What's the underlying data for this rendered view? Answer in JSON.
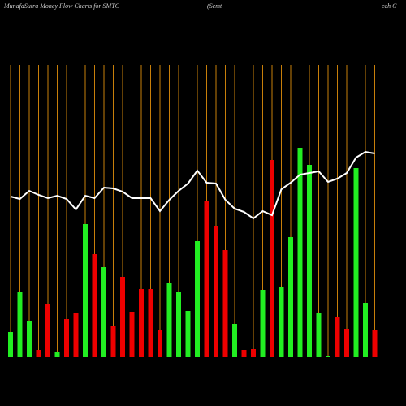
{
  "chart_data": {
    "type": "bar-line",
    "title_parts": [
      "MunafaSutra  Money Flow  Charts for SMTC",
      "(Semt",
      "ech C"
    ],
    "categories": [
      null,
      null,
      null,
      null,
      null,
      null,
      null,
      null,
      null,
      null,
      null,
      null,
      null,
      null,
      null,
      null,
      null,
      null,
      null,
      null,
      null,
      null,
      null,
      null,
      null,
      null,
      null,
      null,
      null,
      null,
      null,
      null,
      null,
      null,
      null,
      null,
      null,
      null,
      null,
      null
    ],
    "bar_values": [
      31,
      80,
      45,
      9,
      65,
      6,
      47,
      55,
      164,
      127,
      111,
      39,
      99,
      56,
      84,
      84,
      33,
      92,
      80,
      57,
      143,
      192,
      162,
      132,
      41,
      9,
      10,
      83,
      243,
      86,
      148,
      258,
      237,
      54,
      2,
      50,
      35,
      233,
      67,
      33
    ],
    "bar_colors": [
      "#2e2",
      "#2e2",
      "#2e2",
      "#e00",
      "#e00",
      "#2e2",
      "#e00",
      "#e00",
      "#2e2",
      "#e00",
      "#2e2",
      "#e00",
      "#e00",
      "#e00",
      "#e00",
      "#e00",
      "#e00",
      "#2e2",
      "#2e2",
      "#2e2",
      "#2e2",
      "#e00",
      "#e00",
      "#e00",
      "#2e2",
      "#e00",
      "#e00",
      "#2e2",
      "#e00",
      "#2e2",
      "#2e2",
      "#2e2",
      "#2e2",
      "#2e2",
      "#2e2",
      "#e00",
      "#e00",
      "#2e2",
      "#2e2",
      "#e00"
    ],
    "line_values": [
      198,
      195,
      205,
      200,
      196,
      199,
      195,
      182,
      199,
      196,
      209,
      208,
      204,
      196,
      196,
      196,
      180,
      194,
      205,
      214,
      230,
      215,
      214,
      194,
      183,
      179,
      171,
      180,
      175,
      207,
      215,
      225,
      227,
      229,
      216,
      220,
      227,
      246,
      253,
      251
    ],
    "line_color": "#fff",
    "grid_color": "#c87f0a",
    "ylim": [
      0,
      360
    ]
  }
}
